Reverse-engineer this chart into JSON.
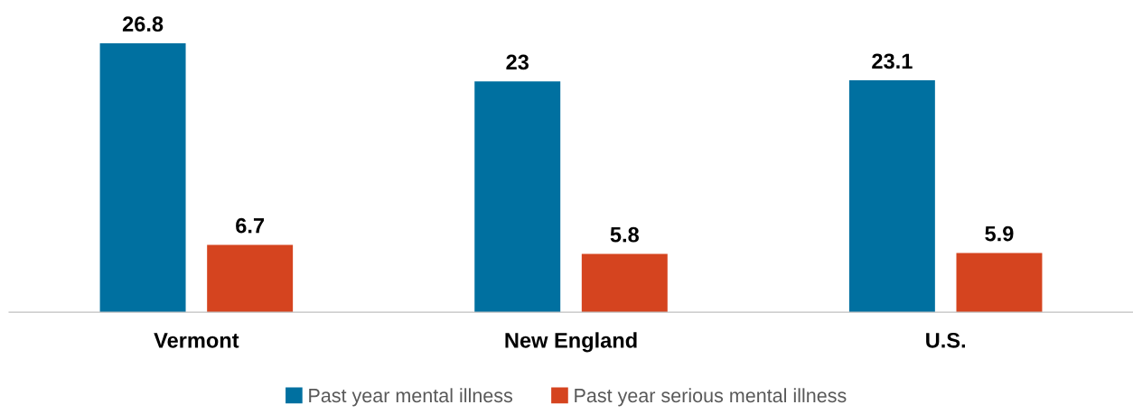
{
  "chart_data": {
    "type": "bar",
    "categories": [
      "Vermont",
      "New England",
      "U.S."
    ],
    "series": [
      {
        "name": "Past year mental illness",
        "color": "#0070a0",
        "values": [
          26.8,
          23,
          23.1
        ]
      },
      {
        "name": "Past year serious mental illness",
        "color": "#d5441f",
        "values": [
          6.7,
          5.8,
          5.9
        ]
      }
    ],
    "data_labels": true,
    "legend": "bottom",
    "grid": false
  }
}
